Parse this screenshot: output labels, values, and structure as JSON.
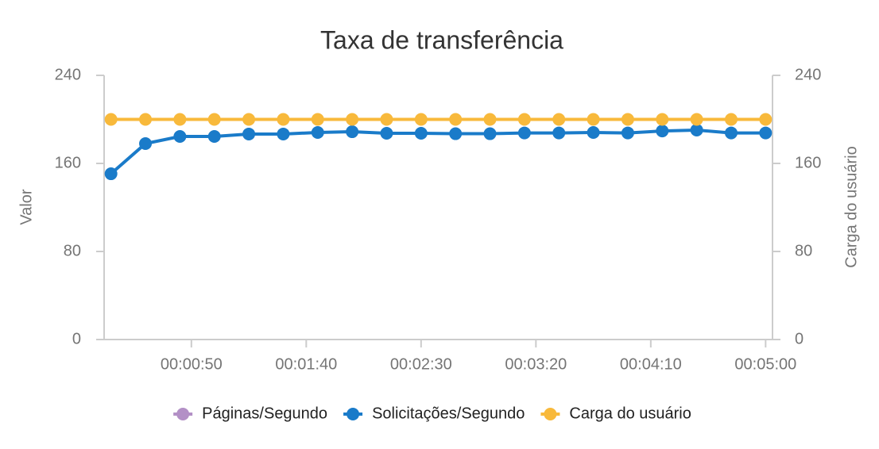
{
  "chart_data": {
    "type": "line",
    "title": "Taxa de transferência",
    "ylabel": "Valor",
    "y2label": "Carga do usuário",
    "x": [
      15,
      30,
      45,
      60,
      75,
      90,
      105,
      120,
      135,
      150,
      165,
      180,
      195,
      210,
      225,
      240,
      255,
      270,
      285,
      300
    ],
    "xlim": [
      12,
      303
    ],
    "xticks": [
      {
        "value": 50,
        "label": "00:00:50"
      },
      {
        "value": 100,
        "label": "00:01:40"
      },
      {
        "value": 150,
        "label": "00:02:30"
      },
      {
        "value": 200,
        "label": "00:03:20"
      },
      {
        "value": 250,
        "label": "00:04:10"
      },
      {
        "value": 300,
        "label": "00:05:00"
      }
    ],
    "ylim": [
      0,
      240
    ],
    "yticks": [
      0,
      80,
      160,
      240
    ],
    "y2lim": [
      0,
      240
    ],
    "y2ticks": [
      0,
      80,
      160,
      240
    ],
    "grid": false,
    "series": [
      {
        "name": "Páginas/Segundo",
        "color": "#b390c6",
        "values": [
          null,
          null,
          null,
          null,
          null,
          null,
          null,
          null,
          null,
          null,
          null,
          null,
          null,
          null,
          null,
          null,
          null,
          null,
          null,
          null
        ]
      },
      {
        "name": "Solicitações/Segundo",
        "color": "#1a7bc9",
        "values": [
          150.6,
          178,
          184.5,
          184.5,
          186.7,
          186.7,
          188.1,
          188.8,
          187.4,
          187.4,
          187,
          187,
          187.7,
          187.7,
          188.1,
          187.7,
          189.5,
          190.3,
          187.7,
          187.7
        ]
      },
      {
        "name": "Carga do usuário",
        "color": "#f8b93b",
        "axis": "y2",
        "values": [
          200,
          200,
          200,
          200,
          200,
          200,
          200,
          200,
          200,
          200,
          200,
          200,
          200,
          200,
          200,
          200,
          200,
          200,
          200,
          200
        ]
      }
    ]
  }
}
